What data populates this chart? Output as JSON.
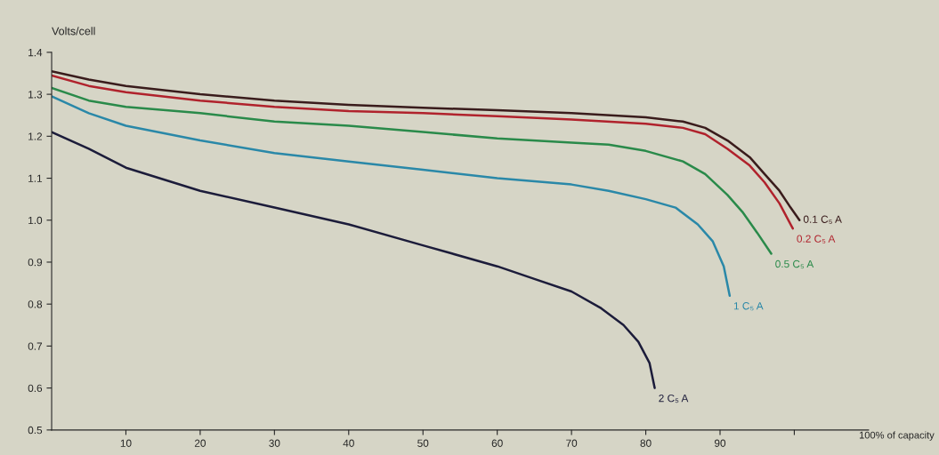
{
  "chart_data": {
    "type": "line",
    "ylabel": "Volts/cell",
    "xlabel": "100% of capacity",
    "xlim": [
      0,
      110
    ],
    "ylim": [
      0.5,
      1.4
    ],
    "xticks": [
      10,
      20,
      30,
      40,
      50,
      60,
      70,
      80,
      90,
      {
        "value": 100,
        "label": null
      }
    ],
    "yticks": [
      {
        "value": 0.5,
        "label": "0.5"
      },
      {
        "value": 0.6,
        "label": "0.6"
      },
      {
        "value": 0.7,
        "label": "0.7"
      },
      {
        "value": 0.8,
        "label": "0.8"
      },
      {
        "value": 0.9,
        "label": "0.9"
      },
      {
        "value": 1.0,
        "label": "1.0"
      },
      {
        "value": 1.1,
        "label": "1.1"
      },
      {
        "value": 1.2,
        "label": "1.2"
      },
      {
        "value": 1.3,
        "label": "1.3"
      },
      {
        "value": 1.4,
        "label": "1.4"
      }
    ],
    "grid": false,
    "legend": false,
    "marker": "none",
    "line_style": "solid",
    "series": [
      {
        "name": "0.1 C₅ A",
        "color": "#3a1c1c",
        "x": [
          0,
          5,
          10,
          20,
          30,
          40,
          50,
          60,
          70,
          80,
          85,
          88,
          91,
          94,
          96,
          98,
          99.5,
          100.7
        ],
        "values": [
          1.355,
          1.335,
          1.32,
          1.3,
          1.285,
          1.275,
          1.268,
          1.262,
          1.255,
          1.245,
          1.235,
          1.22,
          1.19,
          1.15,
          1.11,
          1.07,
          1.03,
          1.0
        ]
      },
      {
        "name": "0.2 C₅ A",
        "color": "#b0222c",
        "x": [
          0,
          5,
          10,
          20,
          30,
          40,
          50,
          60,
          70,
          80,
          85,
          88,
          91,
          94,
          96,
          98,
          99.8
        ],
        "values": [
          1.345,
          1.32,
          1.305,
          1.285,
          1.27,
          1.26,
          1.255,
          1.248,
          1.24,
          1.23,
          1.22,
          1.205,
          1.17,
          1.13,
          1.09,
          1.04,
          0.98
        ]
      },
      {
        "name": "0.5 C₅ A",
        "color": "#2a8a4a",
        "x": [
          0,
          5,
          10,
          20,
          30,
          40,
          50,
          60,
          70,
          75,
          80,
          85,
          88,
          91,
          93,
          95,
          96.9
        ],
        "values": [
          1.315,
          1.285,
          1.27,
          1.255,
          1.235,
          1.225,
          1.21,
          1.195,
          1.185,
          1.18,
          1.165,
          1.14,
          1.11,
          1.06,
          1.02,
          0.97,
          0.92
        ]
      },
      {
        "name": "1 C₅ A",
        "color": "#2a88a8",
        "x": [
          0,
          5,
          10,
          20,
          30,
          40,
          50,
          60,
          70,
          75,
          80,
          84,
          87,
          89,
          90.5,
          91.3
        ],
        "values": [
          1.295,
          1.255,
          1.225,
          1.19,
          1.16,
          1.14,
          1.12,
          1.1,
          1.085,
          1.07,
          1.05,
          1.03,
          0.99,
          0.95,
          0.89,
          0.82
        ]
      },
      {
        "name": "2 C₅ A",
        "color": "#1c1c3a",
        "x": [
          0,
          5,
          10,
          20,
          30,
          40,
          50,
          60,
          65,
          70,
          74,
          77,
          79,
          80.5,
          81.2
        ],
        "values": [
          1.21,
          1.17,
          1.125,
          1.07,
          1.03,
          0.99,
          0.94,
          0.89,
          0.86,
          0.83,
          0.79,
          0.75,
          0.71,
          0.66,
          0.6
        ]
      }
    ]
  }
}
